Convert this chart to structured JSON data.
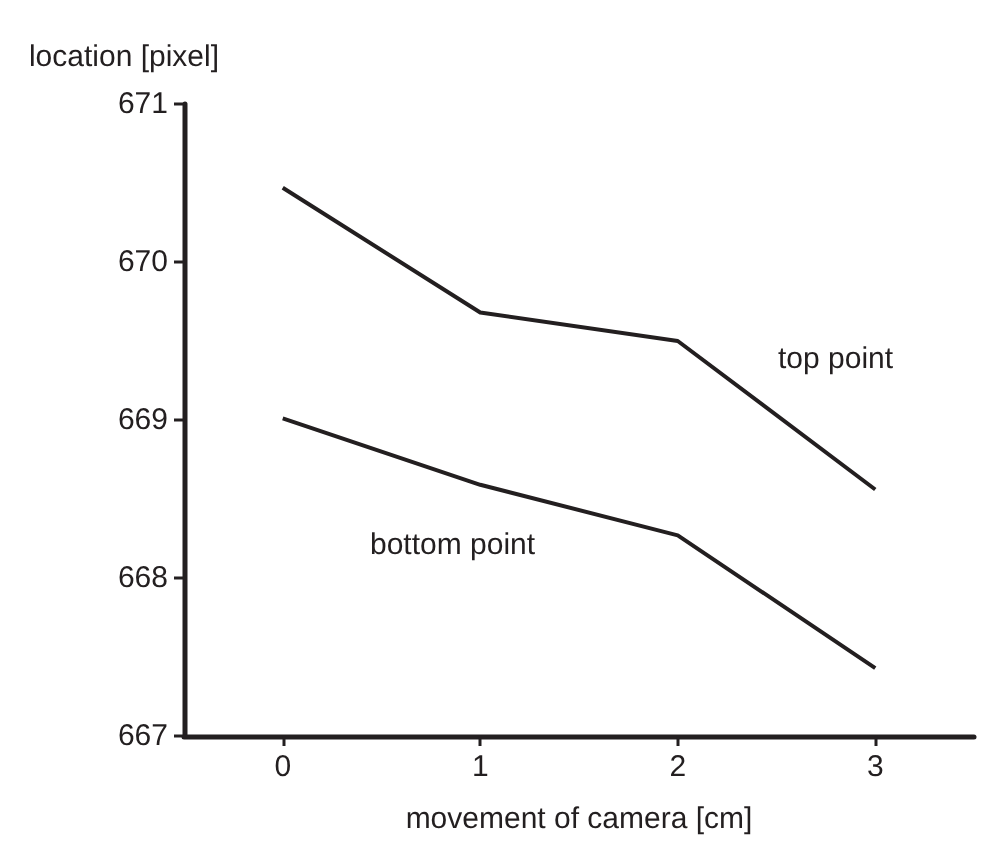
{
  "chart_data": {
    "type": "line",
    "xlabel": "movement of camera [cm]",
    "ylabel": "location [pixel]",
    "x": [
      0,
      1,
      2,
      3
    ],
    "series": [
      {
        "color": "#231f20",
        "values": [
          670.47,
          669.68,
          669.5,
          668.56
        ]
      },
      {
        "color": "#231f20",
        "values": [
          669.01,
          668.59,
          668.27,
          667.43
        ]
      }
    ],
    "annotations": [
      "top point",
      "bottom point"
    ],
    "xlim": [
      -0.5,
      3.5
    ],
    "xticks": [
      0,
      1,
      2,
      3
    ],
    "ylim": [
      667,
      671
    ],
    "yticks": [
      667,
      668,
      669,
      670,
      671
    ],
    "marker": "none",
    "line_style": "solid"
  }
}
